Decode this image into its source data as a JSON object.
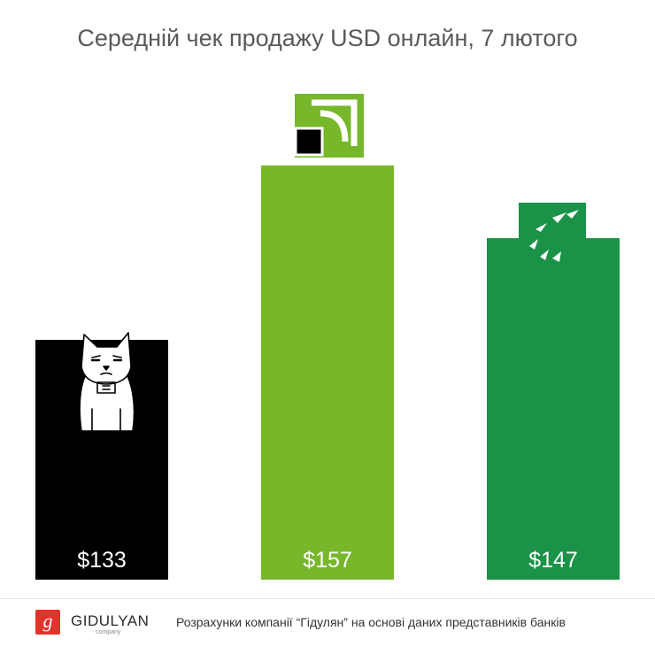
{
  "chart_data": {
    "type": "bar",
    "title": "Середній чек продажу USD онлайн, 7 лютого",
    "ylim": [
      0,
      157
    ],
    "series": [
      {
        "values": [
          133,
          157,
          147
        ],
        "labels": [
          "$133",
          "$157",
          "$147"
        ],
        "colors": [
          "#000000",
          "#76b82a",
          "#1a9247"
        ]
      }
    ],
    "icons": [
      "cat-icon",
      "privatbank-logo-icon",
      "bnp-logo-icon"
    ]
  },
  "footer": {
    "brand_letter": "g",
    "brand_name": "GIDULYAN",
    "brand_sub": "company",
    "note": "Розрахунки компанії “Гідулян” на основі даних представників банків"
  }
}
